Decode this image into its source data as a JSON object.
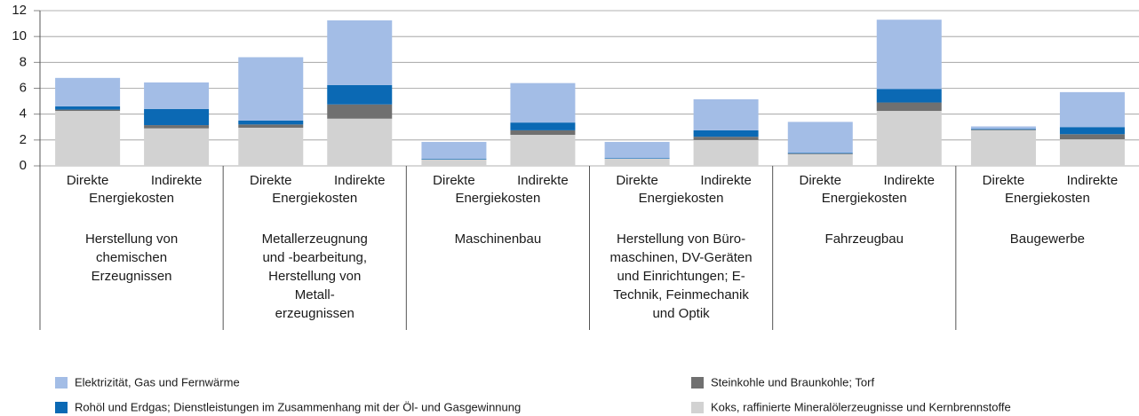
{
  "chart_data": {
    "type": "stacked_bar",
    "categories": [
      "Direkte",
      "Indirekte",
      "Direkte",
      "Indirekte",
      "Direkte",
      "Indirekte",
      "Direkte",
      "Indirekte",
      "Direkte",
      "Indirekte",
      "Direkte",
      "Indirekte"
    ],
    "groups": [
      {
        "sublabel": "Energiekosten",
        "name_lines": [
          "Herstellung von",
          "chemischen",
          "Erzeugnissen"
        ]
      },
      {
        "sublabel": "Energiekosten",
        "name_lines": [
          "Metallerzeugnung",
          "und -bearbeitung,",
          "Herstellung von",
          "Metall-",
          "erzeugnissen"
        ]
      },
      {
        "sublabel": "Energiekosten",
        "name_lines": [
          "Maschinenbau"
        ]
      },
      {
        "sublabel": "Energiekosten",
        "name_lines": [
          "Herstellung von Büro-",
          "maschinen, DV-Geräten",
          "und Einrichtungen; E-",
          "Technik, Feinmechanik",
          "und Optik"
        ]
      },
      {
        "sublabel": "Energiekosten",
        "name_lines": [
          "Fahrzeugbau"
        ]
      },
      {
        "sublabel": "Energiekosten",
        "name_lines": [
          "Baugewerbe"
        ]
      }
    ],
    "series": [
      {
        "name": "Koks, raffinierte Mineralölerzeugnisse und Kernbrennstoffe",
        "color": "#d2d2d2",
        "values": [
          4.25,
          2.9,
          2.95,
          3.65,
          0.5,
          2.4,
          0.55,
          2.0,
          0.9,
          4.25,
          2.75,
          2.05
        ]
      },
      {
        "name": "Steinkohle und Braunkohle; Torf",
        "color": "#707070",
        "values": [
          0.1,
          0.25,
          0.25,
          1.1,
          0.0,
          0.35,
          0.0,
          0.25,
          0.05,
          0.65,
          0.05,
          0.4
        ]
      },
      {
        "name": "Rohöl und Erdgas; Dienstleistungen im Zusammenhang mit der Öl- und Gasgewinnung",
        "color": "#0b69b4",
        "values": [
          0.25,
          1.25,
          0.3,
          1.5,
          0.05,
          0.6,
          0.05,
          0.5,
          0.05,
          1.05,
          0.05,
          0.55
        ]
      },
      {
        "name": "Elektrizität, Gas und Fernwärme",
        "color": "#a3bde6",
        "values": [
          2.2,
          2.05,
          4.9,
          5.0,
          1.3,
          3.05,
          1.25,
          2.4,
          2.4,
          5.35,
          0.2,
          2.7
        ]
      }
    ],
    "ylim": [
      0,
      12
    ],
    "yticks": [
      0,
      2,
      4,
      6,
      8,
      10,
      12
    ],
    "grid": true
  }
}
